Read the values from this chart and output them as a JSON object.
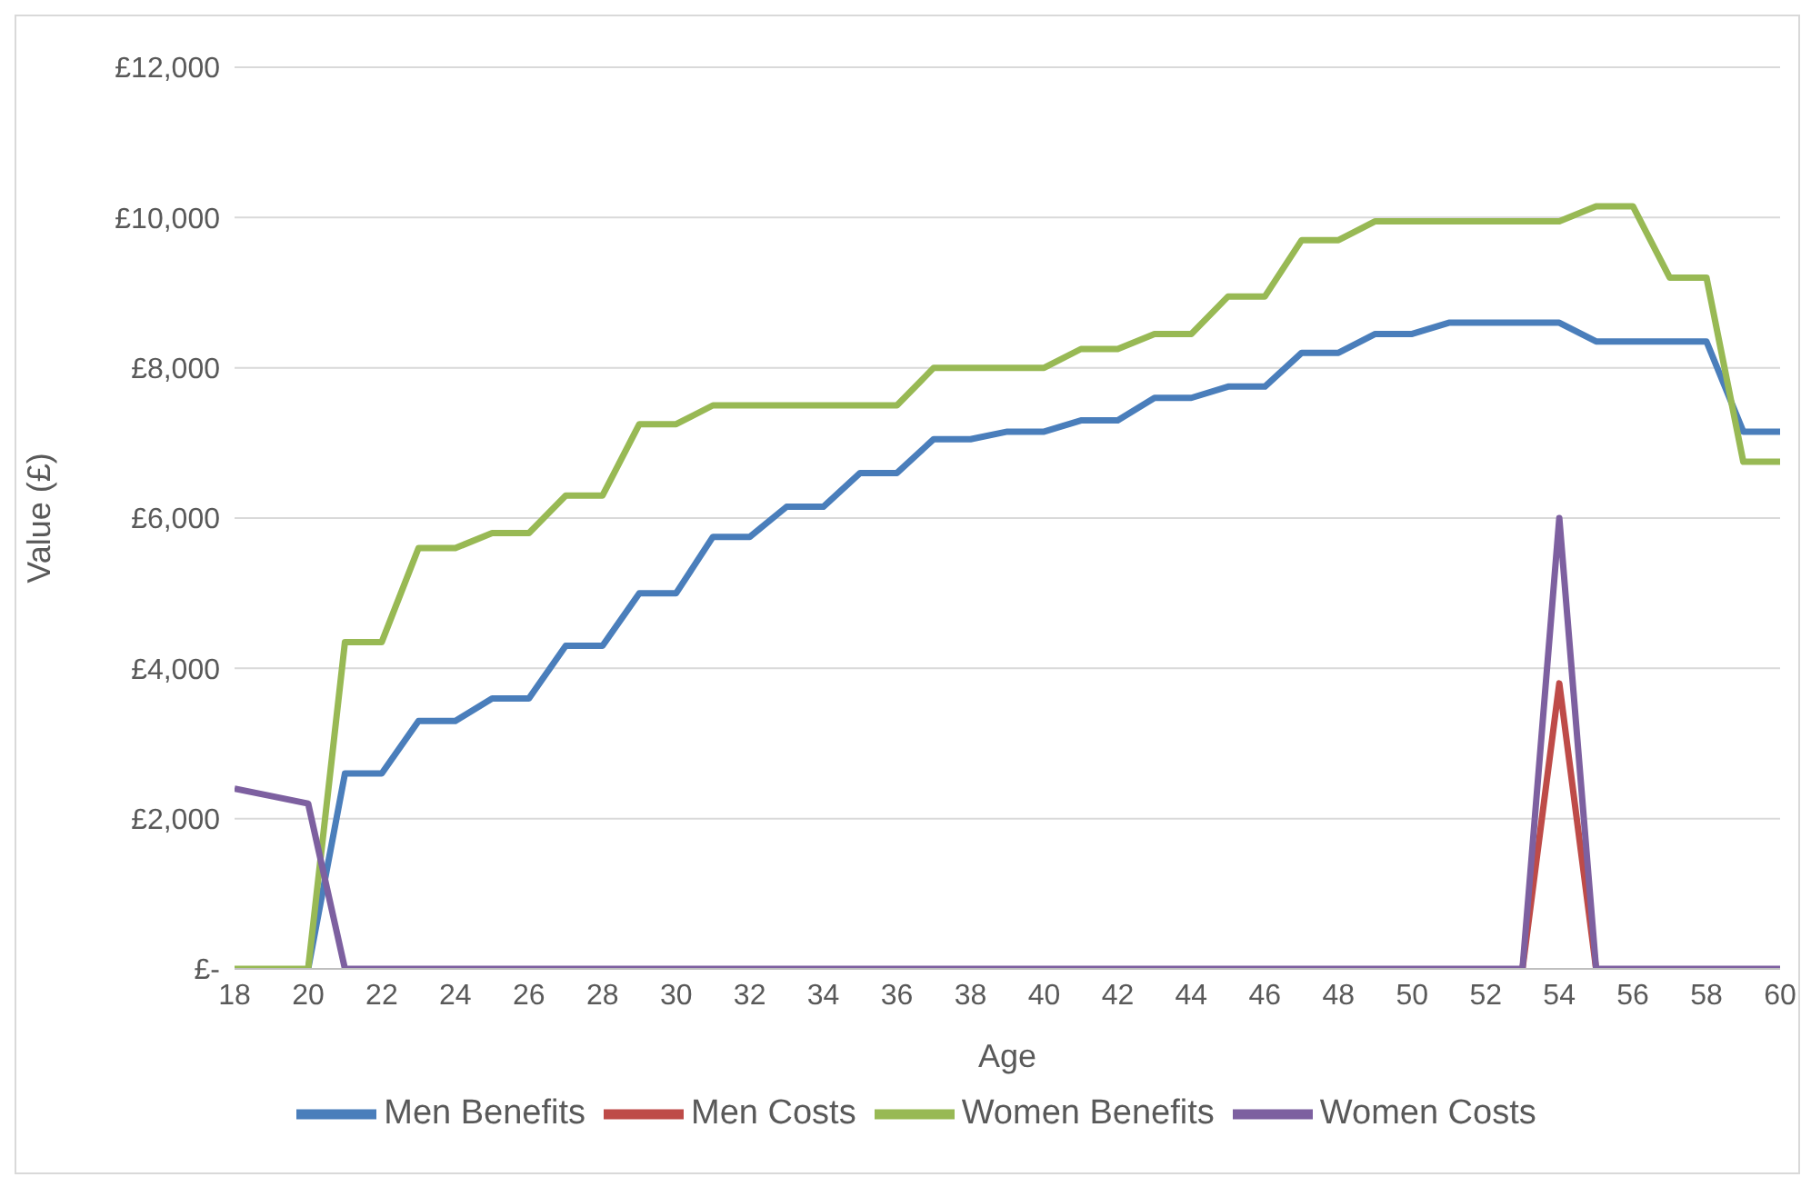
{
  "chart_data": {
    "type": "line",
    "xlabel": "Age",
    "ylabel": "Value (£)",
    "x": [
      18,
      19,
      20,
      21,
      22,
      23,
      24,
      25,
      26,
      27,
      28,
      29,
      30,
      31,
      32,
      33,
      34,
      35,
      36,
      37,
      38,
      39,
      40,
      41,
      42,
      43,
      44,
      45,
      46,
      47,
      48,
      49,
      50,
      51,
      52,
      53,
      54,
      55,
      56,
      57,
      58,
      59,
      60
    ],
    "xlim": [
      18,
      60
    ],
    "xticks": [
      18,
      20,
      22,
      24,
      26,
      28,
      30,
      32,
      34,
      36,
      38,
      40,
      42,
      44,
      46,
      48,
      50,
      52,
      54,
      56,
      58,
      60
    ],
    "ylim": [
      0,
      12000
    ],
    "yticks": [
      {
        "value": 0,
        "label": "£-"
      },
      {
        "value": 2000,
        "label": "£2,000"
      },
      {
        "value": 4000,
        "label": "£4,000"
      },
      {
        "value": 6000,
        "label": "£6,000"
      },
      {
        "value": 8000,
        "label": "£8,000"
      },
      {
        "value": 10000,
        "label": "£10,000"
      },
      {
        "value": 12000,
        "label": "£12,000"
      }
    ],
    "grid": "y",
    "legend": "bottom",
    "marker": "none",
    "line_style": "solid",
    "series": [
      {
        "name": "Men Benefits",
        "color": "#4a7ebb",
        "values": [
          null,
          null,
          0,
          2600,
          2600,
          3300,
          3300,
          3600,
          3600,
          4300,
          4300,
          5000,
          5000,
          5750,
          5750,
          6150,
          6150,
          6600,
          6600,
          7050,
          7050,
          7150,
          7150,
          7300,
          7300,
          7600,
          7600,
          7750,
          7750,
          8200,
          8200,
          8450,
          8450,
          8600,
          8600,
          8600,
          8600,
          8350,
          8350,
          8350,
          8350,
          7150,
          7150
        ]
      },
      {
        "name": "Men Costs",
        "color": "#be4b48",
        "values": [
          null,
          null,
          null,
          null,
          null,
          null,
          null,
          null,
          null,
          null,
          null,
          null,
          null,
          null,
          null,
          null,
          null,
          null,
          null,
          null,
          null,
          null,
          null,
          null,
          null,
          null,
          null,
          null,
          null,
          null,
          null,
          null,
          null,
          null,
          null,
          0,
          3800,
          0,
          null,
          null,
          null,
          null,
          null
        ]
      },
      {
        "name": "Women Benefits",
        "color": "#98b954",
        "values": [
          0,
          0,
          0,
          4350,
          4350,
          5600,
          5600,
          5800,
          5800,
          6300,
          6300,
          7250,
          7250,
          7500,
          7500,
          7500,
          7500,
          7500,
          7500,
          8000,
          8000,
          8000,
          8000,
          8250,
          8250,
          8450,
          8450,
          8950,
          8950,
          9700,
          9700,
          9950,
          9950,
          9950,
          9950,
          9950,
          9950,
          10150,
          10150,
          9200,
          9200,
          6750,
          6750
        ]
      },
      {
        "name": "Women Costs",
        "color": "#7d60a0",
        "values": [
          2400,
          2300,
          2200,
          0,
          0,
          0,
          0,
          0,
          0,
          0,
          0,
          0,
          0,
          0,
          0,
          0,
          0,
          0,
          0,
          0,
          0,
          0,
          0,
          0,
          0,
          0,
          0,
          0,
          0,
          0,
          0,
          0,
          0,
          0,
          0,
          0,
          6000,
          0,
          0,
          0,
          0,
          0,
          0
        ]
      }
    ]
  }
}
